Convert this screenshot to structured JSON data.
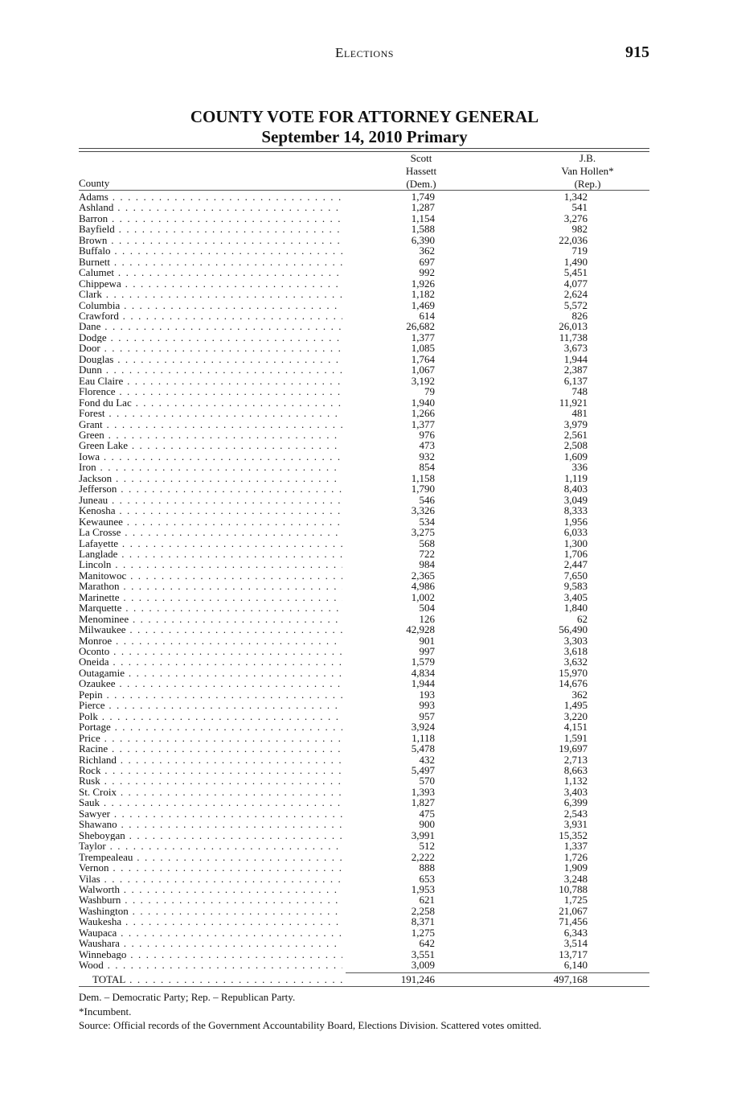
{
  "running_head": {
    "section": "Elections",
    "page_number": "915"
  },
  "title": "COUNTY VOTE FOR ATTORNEY GENERAL",
  "subtitle": "September 14, 2010 Primary",
  "columns": {
    "county": "County",
    "dem": {
      "line1": "Scott",
      "line2": "Hassett",
      "line3": "(Dem.)"
    },
    "rep": {
      "line1": "J.B.",
      "line2": "Van Hollen*",
      "line3": "(Rep.)"
    }
  },
  "rows": [
    [
      "Adams",
      "1,749",
      "1,342"
    ],
    [
      "Ashland",
      "1,287",
      "541"
    ],
    [
      "Barron",
      "1,154",
      "3,276"
    ],
    [
      "Bayfield",
      "1,588",
      "982"
    ],
    [
      "Brown",
      "6,390",
      "22,036"
    ],
    [
      "Buffalo",
      "362",
      "719"
    ],
    [
      "Burnett",
      "697",
      "1,490"
    ],
    [
      "Calumet",
      "992",
      "5,451"
    ],
    [
      "Chippewa",
      "1,926",
      "4,077"
    ],
    [
      "Clark",
      "1,182",
      "2,624"
    ],
    [
      "Columbia",
      "1,469",
      "5,572"
    ],
    [
      "Crawford",
      "614",
      "826"
    ],
    [
      "Dane",
      "26,682",
      "26,013"
    ],
    [
      "Dodge",
      "1,377",
      "11,738"
    ],
    [
      "Door",
      "1,085",
      "3,673"
    ],
    [
      "Douglas",
      "1,764",
      "1,944"
    ],
    [
      "Dunn",
      "1,067",
      "2,387"
    ],
    [
      "Eau Claire",
      "3,192",
      "6,137"
    ],
    [
      "Florence",
      "79",
      "748"
    ],
    [
      "Fond du Lac",
      "1,940",
      "11,921"
    ],
    [
      "Forest",
      "1,266",
      "481"
    ],
    [
      "Grant",
      "1,377",
      "3,979"
    ],
    [
      "Green",
      "976",
      "2,561"
    ],
    [
      "Green Lake",
      "473",
      "2,508"
    ],
    [
      "Iowa",
      "932",
      "1,609"
    ],
    [
      "Iron",
      "854",
      "336"
    ],
    [
      "Jackson",
      "1,158",
      "1,119"
    ],
    [
      "Jefferson",
      "1,790",
      "8,403"
    ],
    [
      "Juneau",
      "546",
      "3,049"
    ],
    [
      "Kenosha",
      "3,326",
      "8,333"
    ],
    [
      "Kewaunee",
      "534",
      "1,956"
    ],
    [
      "La Crosse",
      "3,275",
      "6,033"
    ],
    [
      "Lafayette",
      "568",
      "1,300"
    ],
    [
      "Langlade",
      "722",
      "1,706"
    ],
    [
      "Lincoln",
      "984",
      "2,447"
    ],
    [
      "Manitowoc",
      "2,365",
      "7,650"
    ],
    [
      "Marathon",
      "4,986",
      "9,583"
    ],
    [
      "Marinette",
      "1,002",
      "3,405"
    ],
    [
      "Marquette",
      "504",
      "1,840"
    ],
    [
      "Menominee",
      "126",
      "62"
    ],
    [
      "Milwaukee",
      "42,928",
      "56,490"
    ],
    [
      "Monroe",
      "901",
      "3,303"
    ],
    [
      "Oconto",
      "997",
      "3,618"
    ],
    [
      "Oneida",
      "1,579",
      "3,632"
    ],
    [
      "Outagamie",
      "4,834",
      "15,970"
    ],
    [
      "Ozaukee",
      "1,944",
      "14,676"
    ],
    [
      "Pepin",
      "193",
      "362"
    ],
    [
      "Pierce",
      "993",
      "1,495"
    ],
    [
      "Polk",
      "957",
      "3,220"
    ],
    [
      "Portage",
      "3,924",
      "4,151"
    ],
    [
      "Price",
      "1,118",
      "1,591"
    ],
    [
      "Racine",
      "5,478",
      "19,697"
    ],
    [
      "Richland",
      "432",
      "2,713"
    ],
    [
      "Rock",
      "5,497",
      "8,663"
    ],
    [
      "Rusk",
      "570",
      "1,132"
    ],
    [
      "St. Croix",
      "1,393",
      "3,403"
    ],
    [
      "Sauk",
      "1,827",
      "6,399"
    ],
    [
      "Sawyer",
      "475",
      "2,543"
    ],
    [
      "Shawano",
      "900",
      "3,931"
    ],
    [
      "Sheboygan",
      "3,991",
      "15,352"
    ],
    [
      "Taylor",
      "512",
      "1,337"
    ],
    [
      "Trempealeau",
      "2,222",
      "1,726"
    ],
    [
      "Vernon",
      "888",
      "1,909"
    ],
    [
      "Vilas",
      "653",
      "3,248"
    ],
    [
      "Walworth",
      "1,953",
      "10,788"
    ],
    [
      "Washburn",
      "621",
      "1,725"
    ],
    [
      "Washington",
      "2,258",
      "21,067"
    ],
    [
      "Waukesha",
      "8,371",
      "71,456"
    ],
    [
      "Waupaca",
      "1,275",
      "6,343"
    ],
    [
      "Waushara",
      "642",
      "3,514"
    ],
    [
      "Winnebago",
      "3,551",
      "13,717"
    ],
    [
      "Wood",
      "3,009",
      "6,140"
    ]
  ],
  "total": {
    "label": "TOTAL",
    "dem": "191,246",
    "rep": "497,168"
  },
  "notes": {
    "parties": "Dem. – Democratic Party; Rep. – Republican Party.",
    "incumbent": "*Incumbent.",
    "source": "Source: Official records of the Government Accountability Board, Elections Division.  Scattered votes omitted."
  }
}
